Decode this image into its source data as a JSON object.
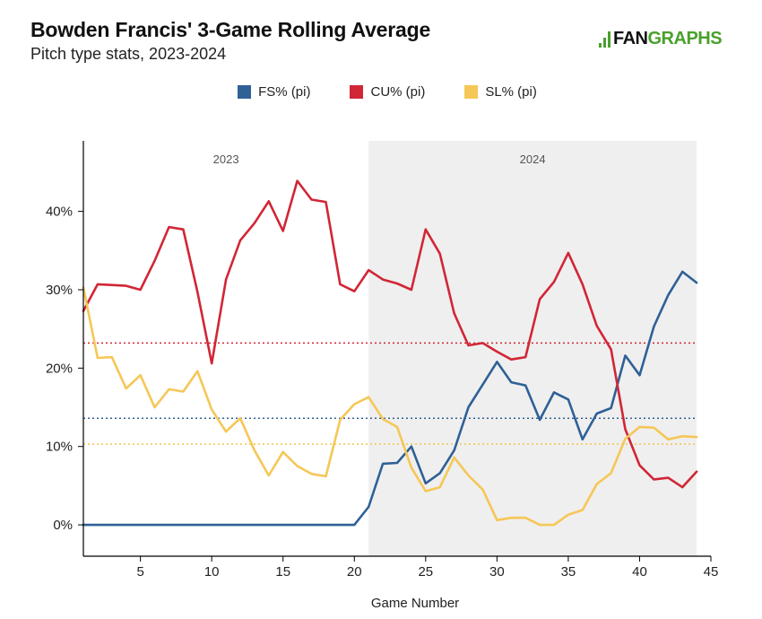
{
  "header": {
    "title": "Bowden Francis' 3-Game Rolling Average",
    "subtitle": "Pitch type stats, 2023-2024",
    "logo_prefix": "FAN",
    "logo_suffix": "GRAPHS"
  },
  "colors": {
    "fs": "#2f6096",
    "cu": "#d12636",
    "sl": "#f5c756",
    "shade": "#efefef",
    "axis": "#000000",
    "logo": "#4aa02c"
  },
  "chart_data": {
    "type": "line",
    "xlabel": "Game Number",
    "ylabel": "",
    "xlim": [
      1,
      45
    ],
    "ylim": [
      -4,
      49
    ],
    "x_ticks": [
      5,
      10,
      15,
      20,
      25,
      30,
      35,
      40,
      45
    ],
    "y_ticks": [
      0,
      10,
      20,
      30,
      40
    ],
    "y_tick_labels": [
      "0%",
      "10%",
      "20%",
      "30%",
      "40%"
    ],
    "legend_position": "top",
    "seasons": [
      {
        "label": "2023",
        "start": 1,
        "end": 21,
        "shaded": false
      },
      {
        "label": "2024",
        "start": 21,
        "end": 44,
        "shaded": true
      }
    ],
    "x": [
      1,
      2,
      3,
      4,
      5,
      6,
      7,
      8,
      9,
      10,
      11,
      12,
      13,
      14,
      15,
      16,
      17,
      18,
      19,
      20,
      21,
      22,
      23,
      24,
      25,
      26,
      27,
      28,
      29,
      30,
      31,
      32,
      33,
      34,
      35,
      36,
      37,
      38,
      39,
      40,
      41,
      42,
      43,
      44
    ],
    "series": [
      {
        "name": "FS% (pi)",
        "key": "fs",
        "values": [
          0,
          0,
          0,
          0,
          0,
          0,
          0,
          0,
          0,
          0,
          0,
          0,
          0,
          0,
          0,
          0,
          0,
          0,
          0,
          0,
          2.3,
          7.8,
          7.9,
          10.0,
          5.3,
          6.6,
          9.5,
          15.0,
          17.9,
          20.8,
          18.2,
          17.8,
          13.4,
          16.9,
          16.0,
          10.9,
          14.2,
          14.9,
          21.6,
          19.1,
          25.3,
          29.3,
          32.3,
          30.9
        ],
        "mean": 13.6
      },
      {
        "name": "CU% (pi)",
        "key": "cu",
        "values": [
          27.3,
          30.7,
          30.6,
          30.5,
          30.0,
          33.7,
          38.0,
          37.7,
          29.7,
          20.6,
          31.3,
          36.3,
          38.5,
          41.3,
          37.5,
          43.9,
          41.5,
          41.2,
          30.7,
          29.8,
          32.5,
          31.3,
          30.8,
          30.0,
          37.7,
          34.6,
          27.0,
          22.9,
          23.2,
          22.1,
          21.1,
          21.4,
          28.8,
          31.0,
          34.7,
          30.7,
          25.4,
          22.4,
          12.2,
          7.6,
          5.8,
          6.0,
          4.8,
          6.8
        ],
        "mean": 23.2
      },
      {
        "name": "SL% (pi)",
        "key": "sl",
        "values": [
          30.3,
          21.3,
          21.4,
          17.4,
          19.1,
          15.0,
          17.3,
          17.0,
          19.6,
          14.7,
          11.9,
          13.6,
          9.5,
          6.3,
          9.3,
          7.5,
          6.5,
          6.2,
          13.4,
          15.4,
          16.3,
          13.5,
          12.5,
          7.3,
          4.3,
          4.8,
          8.6,
          6.3,
          4.5,
          0.6,
          0.9,
          0.9,
          0.0,
          0.0,
          1.3,
          1.9,
          5.2,
          6.6,
          11.0,
          12.5,
          12.4,
          10.9,
          11.3,
          11.2
        ],
        "mean": 10.3
      }
    ]
  }
}
